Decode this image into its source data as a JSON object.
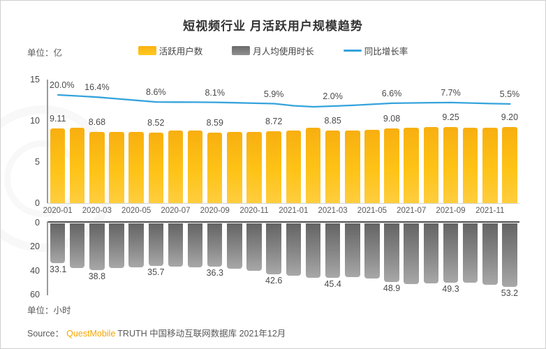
{
  "chart_data": {
    "type": [
      "bar",
      "bar",
      "line"
    ],
    "title": "短视频行业 月活跃用户规模趋势",
    "unit_top": "单位：亿",
    "unit_bottom": "单位：小时",
    "legend": [
      {
        "label": "活跃用户数",
        "type": "bar",
        "color": "#FDBB16"
      },
      {
        "label": "月人均使用时长",
        "type": "bar",
        "color": "#7f7f7f"
      },
      {
        "label": "同比增长率",
        "type": "line",
        "color": "#35A3DC"
      }
    ],
    "x": [
      "2020-01",
      "2020-02",
      "2020-03",
      "2020-04",
      "2020-05",
      "2020-06",
      "2020-07",
      "2020-08",
      "2020-09",
      "2020-10",
      "2020-11",
      "2020-12",
      "2021-01",
      "2021-02",
      "2021-03",
      "2021-04",
      "2021-05",
      "2021-06",
      "2021-07",
      "2021-08",
      "2021-09",
      "2021-10",
      "2021-11",
      "2021-12"
    ],
    "x_tick_labels": [
      "2020-01",
      "2020-03",
      "2020-05",
      "2020-07",
      "2020-09",
      "2020-11",
      "2021-01",
      "2021-03",
      "2021-05",
      "2021-07",
      "2021-09",
      "2021-11"
    ],
    "series": [
      {
        "name": "活跃用户数",
        "axis": "top",
        "unit": "亿",
        "values": [
          9.11,
          9.16,
          8.68,
          8.66,
          8.61,
          8.52,
          8.78,
          8.82,
          8.59,
          8.62,
          8.66,
          8.72,
          8.8,
          9.15,
          8.85,
          8.82,
          8.86,
          9.08,
          9.18,
          9.27,
          9.25,
          9.17,
          9.16,
          9.2
        ]
      },
      {
        "name": "同比增长率",
        "axis": "secondary",
        "unit": "%",
        "values": [
          20.0,
          18.3,
          16.4,
          13.8,
          11.2,
          8.6,
          8.4,
          8.3,
          8.1,
          7.4,
          6.6,
          5.9,
          2.6,
          0.9,
          2.0,
          3.3,
          4.9,
          6.6,
          7.1,
          7.5,
          7.7,
          7.0,
          6.1,
          5.5
        ]
      },
      {
        "name": "月人均使用时长",
        "axis": "bottom",
        "unit": "小时",
        "values": [
          33.1,
          37.0,
          38.8,
          37.2,
          36.5,
          35.7,
          36.2,
          36.8,
          36.3,
          37.8,
          39.5,
          42.6,
          43.8,
          45.2,
          45.4,
          44.6,
          46.0,
          48.9,
          50.8,
          50.2,
          49.3,
          49.8,
          51.0,
          53.2
        ]
      }
    ],
    "annotations": {
      "indices": [
        0,
        2,
        5,
        8,
        11,
        14,
        17,
        20,
        23
      ],
      "mau": [
        "9.11",
        "8.68",
        "8.52",
        "8.59",
        "8.72",
        "8.85",
        "9.08",
        "9.25",
        "9.20"
      ],
      "growth": [
        "20.0%",
        "16.4%",
        "8.6%",
        "8.1%",
        "5.9%",
        "2.0%",
        "6.6%",
        "7.7%",
        "5.5%"
      ],
      "hours": [
        "33.1",
        "38.8",
        "35.7",
        "36.3",
        "42.6",
        "45.4",
        "48.9",
        "49.3",
        "53.2"
      ]
    },
    "top_axis": {
      "ticks": [
        0,
        5,
        10,
        15
      ],
      "max": 15
    },
    "bottom_axis": {
      "ticks": [
        0,
        20,
        40,
        60
      ],
      "max": 60,
      "inverted": true
    },
    "grid": "off",
    "legend_position": "top-center",
    "source": {
      "label": "Source：",
      "brand": "QuestMobile",
      "rest": "TRUTH 中国移动互联网数据库 2021年12月"
    },
    "colors": {
      "bar_yellow": "#FDBB16",
      "bar_gray": "#7f7f7f",
      "line_blue": "#35A3DC",
      "brand_orange": "#F7A600"
    }
  }
}
